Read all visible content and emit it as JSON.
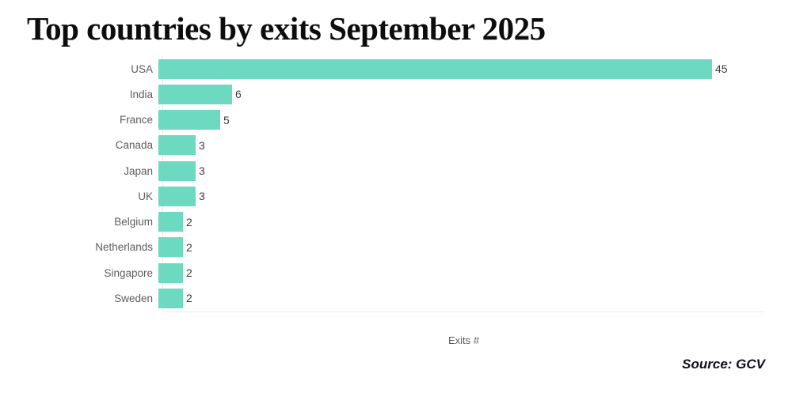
{
  "header": {
    "title": "Top countries by exits September 2025"
  },
  "chart_data": {
    "type": "bar",
    "orientation": "horizontal",
    "title": "Top countries by exits September 2025",
    "categories": [
      "USA",
      "India",
      "France",
      "Canada",
      "Japan",
      "UK",
      "Belgium",
      "Netherlands",
      "Singapore",
      "Sweden"
    ],
    "values": [
      45,
      6,
      5,
      3,
      3,
      3,
      2,
      2,
      2,
      2
    ],
    "xlabel": "Exits #",
    "ylabel": "",
    "xlim": [
      0,
      45
    ],
    "bar_color": "#6dd9c1",
    "value_labels_shown": true,
    "grid": false,
    "legend": "none"
  },
  "footer": {
    "source_label": "Source: GCV"
  }
}
